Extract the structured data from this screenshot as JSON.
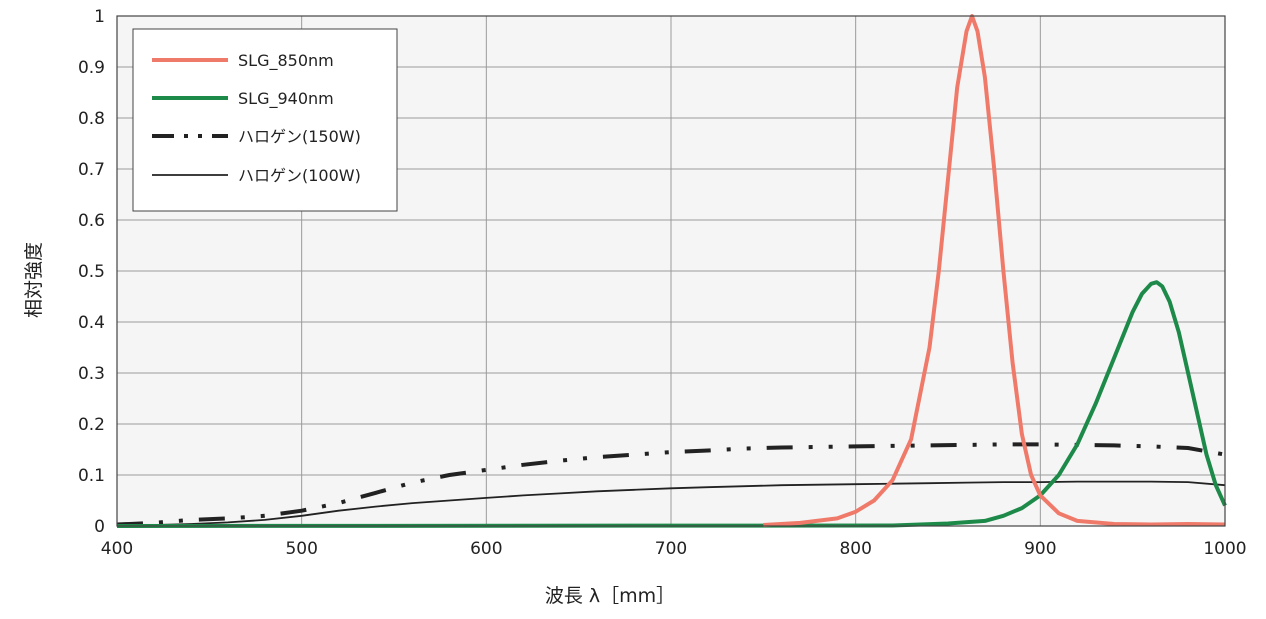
{
  "chart_data": {
    "type": "line",
    "xlabel": "波長 λ［mm］",
    "ylabel": "相対強度",
    "xlim": [
      400,
      1000
    ],
    "ylim": [
      0,
      1
    ],
    "x_ticks": [
      "400",
      "500",
      "600",
      "700",
      "800",
      "900",
      "1000"
    ],
    "y_ticks": [
      "0",
      "0.1",
      "0.2",
      "0.3",
      "0.4",
      "0.5",
      "0.6",
      "0.7",
      "0.8",
      "0.9",
      "1"
    ],
    "grid": true,
    "legend_position": "top-left",
    "series": [
      {
        "name": "SLG_850nm",
        "color": "#f07a6a",
        "style": "solid",
        "x": [
          750,
          770,
          790,
          800,
          810,
          820,
          830,
          840,
          845,
          850,
          855,
          860,
          863,
          866,
          870,
          875,
          880,
          885,
          890,
          895,
          900,
          910,
          920,
          940,
          960,
          980,
          1000
        ],
        "y": [
          0.002,
          0.006,
          0.015,
          0.028,
          0.05,
          0.09,
          0.17,
          0.35,
          0.5,
          0.68,
          0.86,
          0.97,
          1.0,
          0.97,
          0.88,
          0.7,
          0.5,
          0.32,
          0.18,
          0.1,
          0.06,
          0.025,
          0.01,
          0.004,
          0.003,
          0.004,
          0.003
        ]
      },
      {
        "name": "SLG_940nm",
        "color": "#1e8a4a",
        "style": "solid",
        "x": [
          400,
          820,
          850,
          870,
          880,
          890,
          900,
          910,
          920,
          930,
          940,
          950,
          955,
          960,
          963,
          966,
          970,
          975,
          980,
          985,
          990,
          995,
          1000
        ],
        "y": [
          0,
          0.001,
          0.005,
          0.01,
          0.02,
          0.035,
          0.06,
          0.1,
          0.16,
          0.24,
          0.33,
          0.42,
          0.455,
          0.475,
          0.478,
          0.47,
          0.44,
          0.38,
          0.3,
          0.22,
          0.14,
          0.08,
          0.04
        ]
      },
      {
        "name": "ハロゲン(150W)",
        "color": "#222222",
        "style": "dash-dot",
        "x": [
          400,
          420,
          440,
          460,
          480,
          500,
          520,
          540,
          560,
          580,
          600,
          620,
          640,
          660,
          680,
          700,
          720,
          740,
          760,
          780,
          800,
          820,
          840,
          860,
          880,
          900,
          920,
          940,
          960,
          980,
          1000
        ],
        "y": [
          0.003,
          0.006,
          0.012,
          0.015,
          0.02,
          0.03,
          0.045,
          0.065,
          0.085,
          0.1,
          0.11,
          0.12,
          0.128,
          0.135,
          0.14,
          0.145,
          0.148,
          0.152,
          0.154,
          0.155,
          0.156,
          0.157,
          0.158,
          0.159,
          0.16,
          0.16,
          0.159,
          0.158,
          0.156,
          0.153,
          0.14
        ]
      },
      {
        "name": "ハロゲン(100W)",
        "color": "#222222",
        "style": "solid-thin",
        "x": [
          400,
          420,
          440,
          460,
          480,
          500,
          520,
          540,
          560,
          580,
          600,
          620,
          640,
          660,
          680,
          700,
          720,
          740,
          760,
          780,
          800,
          820,
          840,
          860,
          880,
          900,
          920,
          940,
          960,
          980,
          1000
        ],
        "y": [
          0.001,
          0.002,
          0.004,
          0.007,
          0.012,
          0.02,
          0.03,
          0.038,
          0.045,
          0.05,
          0.055,
          0.06,
          0.064,
          0.068,
          0.071,
          0.074,
          0.076,
          0.078,
          0.08,
          0.081,
          0.082,
          0.083,
          0.084,
          0.085,
          0.086,
          0.086,
          0.087,
          0.087,
          0.087,
          0.086,
          0.08
        ]
      }
    ]
  }
}
